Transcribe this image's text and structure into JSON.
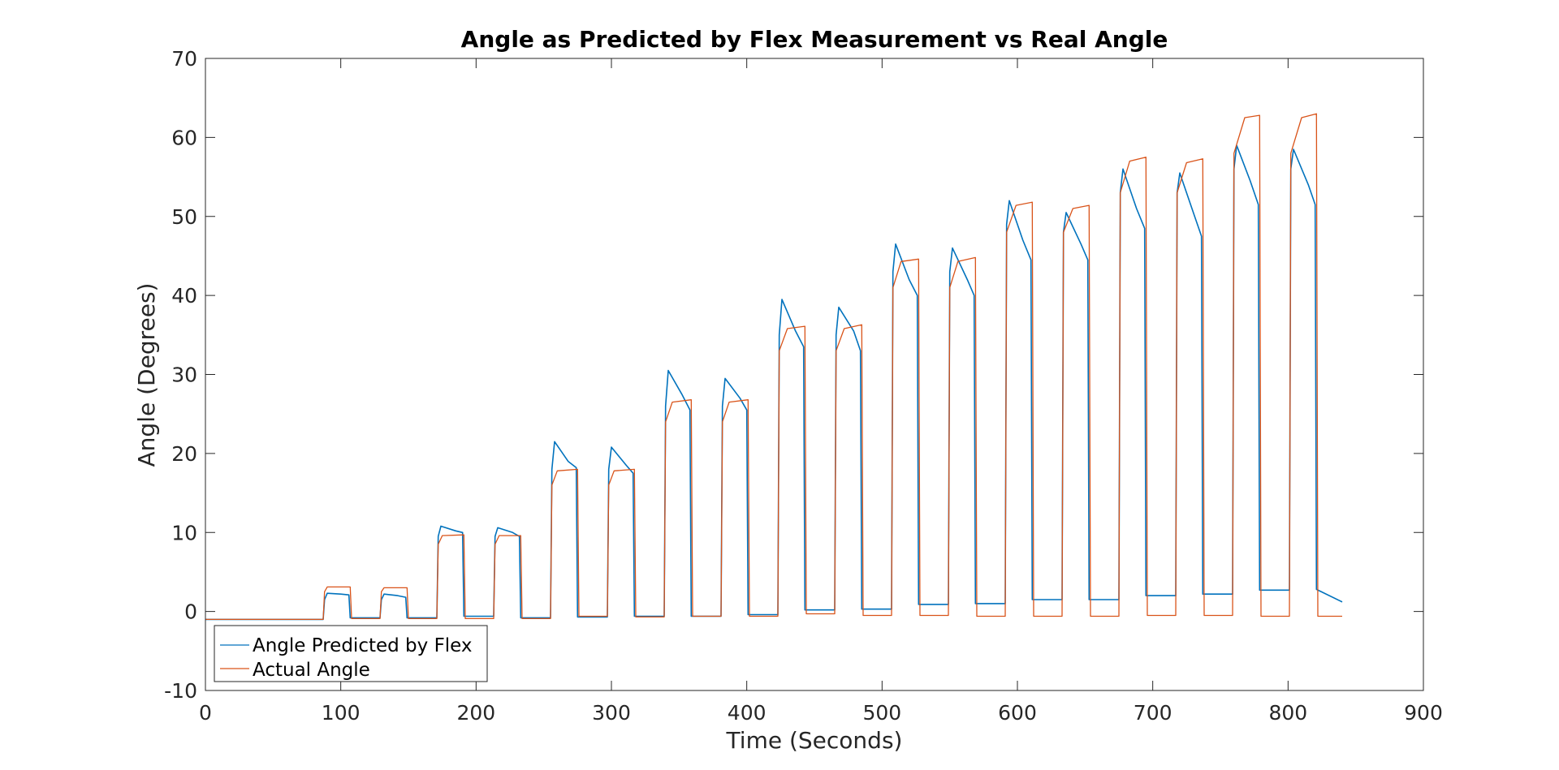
{
  "chart_data": {
    "type": "line",
    "title": "Angle as Predicted by Flex Measurement vs Real Angle",
    "xlabel": "Time (Seconds)",
    "ylabel": "Angle (Degrees)",
    "xlim": [
      0,
      900
    ],
    "ylim": [
      -10,
      70
    ],
    "xticks": [
      0,
      100,
      200,
      300,
      400,
      500,
      600,
      700,
      800,
      900
    ],
    "yticks": [
      -10,
      0,
      10,
      20,
      30,
      40,
      50,
      60,
      70
    ],
    "xtick_labels": [
      "0",
      "100",
      "200",
      "300",
      "400",
      "500",
      "600",
      "700",
      "800",
      "900"
    ],
    "ytick_labels": [
      "-10",
      "0",
      "10",
      "20",
      "30",
      "40",
      "50",
      "60",
      "70"
    ],
    "grid": false,
    "legend_position": "bottom-left",
    "series": [
      {
        "name": "Angle Predicted by Flex",
        "color": "#0072BD",
        "x": [
          0,
          87,
          88,
          90,
          100,
          106,
          107,
          129,
          130,
          132,
          142,
          148,
          149,
          171,
          172,
          174,
          185,
          190,
          191,
          213,
          214,
          216,
          227,
          232,
          233,
          255,
          256,
          258,
          268,
          274,
          275,
          297,
          298,
          300,
          311,
          316,
          317,
          339,
          340,
          342,
          352,
          358,
          359,
          381,
          382,
          384,
          395,
          400,
          401,
          423,
          424,
          426,
          436,
          442,
          443,
          465,
          466,
          468,
          479,
          484,
          485,
          507,
          508,
          510,
          520,
          526,
          527,
          549,
          550,
          552,
          563,
          568,
          569,
          591,
          592,
          594,
          604,
          610,
          611,
          633,
          634,
          636,
          647,
          652,
          653,
          675,
          676,
          678,
          688,
          694,
          695,
          717,
          718,
          720,
          731,
          736,
          737,
          759,
          760,
          762,
          772,
          778,
          779,
          801,
          802,
          804,
          815,
          820,
          821,
          840
        ],
        "y": [
          -1,
          -1,
          1.5,
          2.3,
          2.2,
          2.1,
          -0.8,
          -0.8,
          1.5,
          2.2,
          2,
          1.8,
          -0.8,
          -0.8,
          9.5,
          10.8,
          10.2,
          10,
          -0.6,
          -0.6,
          9.5,
          10.6,
          10,
          9.5,
          -0.8,
          -0.8,
          18,
          21.5,
          19,
          18.2,
          -0.7,
          -0.7,
          18,
          20.8,
          18.5,
          17.5,
          -0.6,
          -0.6,
          26,
          30.5,
          27.5,
          25.5,
          -0.6,
          -0.6,
          26,
          29.5,
          27,
          25.5,
          -0.4,
          -0.4,
          35,
          39.5,
          35.5,
          33.5,
          0.2,
          0.2,
          35,
          38.5,
          35.5,
          33,
          0.3,
          0.3,
          43,
          46.5,
          42,
          40,
          0.9,
          0.9,
          43,
          46,
          42,
          40,
          1,
          1,
          49,
          52,
          47,
          44.5,
          1.5,
          1.5,
          48,
          50.5,
          46.5,
          44.5,
          1.5,
          1.5,
          53,
          56,
          51,
          48.5,
          2,
          2,
          53,
          55.5,
          50,
          47.5,
          2.2,
          2.2,
          56,
          59,
          54.5,
          51.5,
          2.7,
          2.7,
          56,
          58.5,
          54,
          51.5,
          2.8,
          1.2
        ]
      },
      {
        "name": "Actual Angle",
        "color": "#D95319",
        "x": [
          0,
          87,
          88,
          90,
          107,
          108,
          129,
          130,
          132,
          149,
          150,
          171,
          172,
          175,
          191,
          192,
          213,
          214,
          217,
          233,
          234,
          255,
          256,
          260,
          275,
          276,
          297,
          298,
          302,
          317,
          318,
          339,
          340,
          345,
          359,
          360,
          381,
          382,
          387,
          401,
          402,
          423,
          424,
          430,
          443,
          444,
          465,
          466,
          472,
          485,
          486,
          507,
          508,
          514,
          527,
          528,
          549,
          550,
          556,
          569,
          570,
          591,
          592,
          599,
          611,
          612,
          633,
          634,
          641,
          653,
          654,
          675,
          676,
          683,
          695,
          696,
          717,
          718,
          725,
          737,
          738,
          759,
          760,
          768,
          779,
          780,
          801,
          802,
          810,
          821,
          822,
          840
        ],
        "y": [
          -1,
          -1,
          2.5,
          3.1,
          3.1,
          -0.9,
          -0.9,
          2.5,
          3,
          3,
          -0.9,
          -0.9,
          8.5,
          9.6,
          9.7,
          -0.9,
          -0.9,
          8.5,
          9.6,
          9.6,
          -0.9,
          -0.9,
          16,
          17.8,
          18,
          -0.6,
          -0.6,
          16,
          17.8,
          18,
          -0.7,
          -0.7,
          24,
          26.5,
          26.8,
          -0.6,
          -0.6,
          24,
          26.5,
          26.8,
          -0.6,
          -0.6,
          33,
          35.8,
          36.1,
          -0.3,
          -0.3,
          33,
          35.8,
          36.3,
          -0.5,
          -0.5,
          41,
          44.3,
          44.6,
          -0.5,
          -0.5,
          41,
          44.3,
          44.8,
          -0.6,
          -0.6,
          48,
          51.4,
          51.8,
          -0.6,
          -0.6,
          48,
          51,
          51.4,
          -0.6,
          -0.6,
          53,
          57,
          57.5,
          -0.5,
          -0.5,
          53,
          56.8,
          57.3,
          -0.5,
          -0.5,
          58,
          62.5,
          62.8,
          -0.6,
          -0.6,
          58,
          62.5,
          63,
          -0.6,
          -0.6
        ]
      }
    ]
  }
}
